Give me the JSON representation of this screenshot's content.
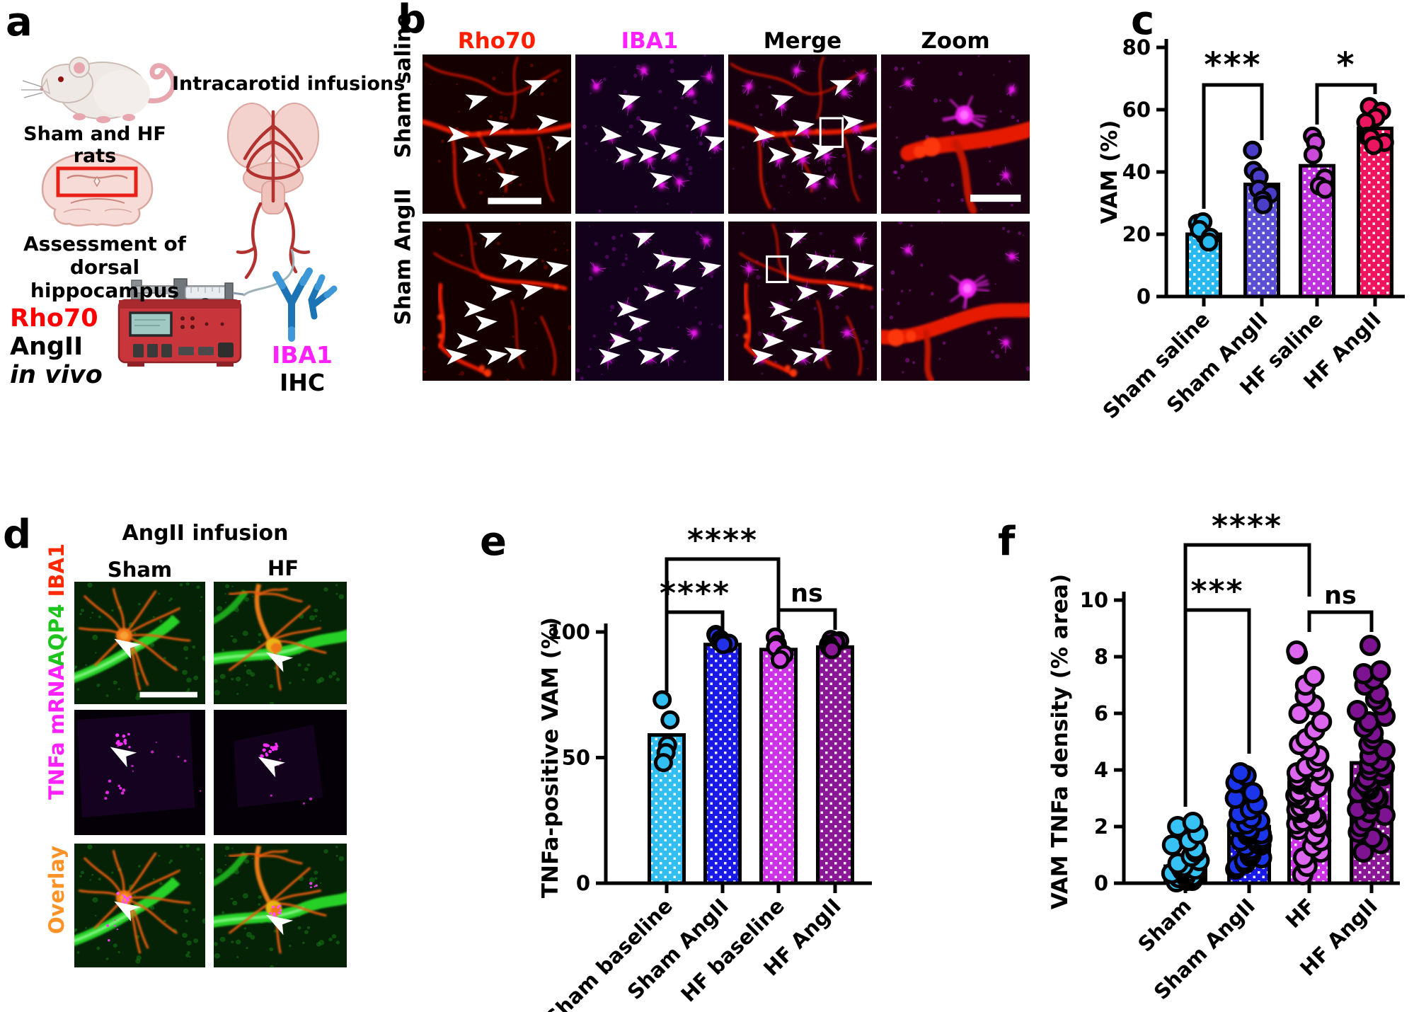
{
  "panels": {
    "a": {
      "label": "a",
      "sham_hf_rats": "Sham and HF rats",
      "intracarotid": "Intracarotid infusions",
      "assessment_1": "Assessment of",
      "assessment_2": "dorsal hippocampus",
      "rho70": "Rho70",
      "angii": "AngII",
      "in_vivo": "in vivo",
      "iba1": "IBA1",
      "ihc": "IHC",
      "colors": {
        "rho70": "#FF0000",
        "iba1": "#FF22FF",
        "antibody": "#1C74B4"
      }
    },
    "b": {
      "label": "b",
      "columns": [
        {
          "label": "Rho70",
          "color": "#FF1E00"
        },
        {
          "label": "IBA1",
          "color": "#FF22FF"
        },
        {
          "label": "Merge",
          "color": "#000000"
        },
        {
          "label": "Zoom",
          "color": "#000000"
        }
      ],
      "rows": [
        "Sham saline",
        "Sham AngII"
      ]
    },
    "c": {
      "label": "c"
    },
    "d": {
      "label": "d",
      "title": "AngII infusion",
      "columns": [
        "Sham",
        "HF"
      ],
      "row1": {
        "aqp4": "AQP4",
        "iba1": "IBA1",
        "aqp4_color": "#1FC41F",
        "iba1_color": "#FF2800"
      },
      "row2": {
        "label": "TNFa mRNA",
        "color": "#FF22FF"
      },
      "row3": {
        "label": "Overlay",
        "color": "#FF9328"
      }
    },
    "e": {
      "label": "e"
    },
    "f": {
      "label": "f"
    }
  },
  "chart_data": [
    {
      "panel": "c",
      "type": "bar",
      "title": "",
      "xlabel": "",
      "ylabel": "VAM (%)",
      "ylim": [
        0,
        80
      ],
      "yticks": [
        0,
        20,
        40,
        60,
        80
      ],
      "grid": false,
      "legend": null,
      "x_tick_rotation": -45,
      "categories": [
        "Sham saline",
        "Sham AngII",
        "HF saline",
        "HF AngII"
      ],
      "values": [
        20,
        36,
        42,
        54
      ],
      "bar_colors": [
        "#29B8F0",
        "#5B4FD4",
        "#BD32DC",
        "#F0135E"
      ],
      "point_colors": [
        "#29B8F0",
        "#4A3EC8",
        "#C94AD8",
        "#EC1560"
      ],
      "points": [
        [
          23.5,
          17.5,
          19.5,
          24,
          21.5,
          19,
          17.5
        ],
        [
          47,
          40.5,
          38.5,
          34.5,
          33,
          31,
          29.5
        ],
        [
          51.5,
          49.5,
          45.5,
          38,
          35.5,
          34.5
        ],
        [
          61,
          59.5,
          57.5,
          56,
          51.5,
          51,
          49.5,
          48.5
        ]
      ],
      "significance": [
        {
          "group1": "Sham saline",
          "group2": "Sham AngII",
          "label": "***"
        },
        {
          "group1": "HF saline",
          "group2": "HF AngII",
          "label": "*"
        }
      ]
    },
    {
      "panel": "e",
      "type": "bar",
      "title": "",
      "xlabel": "",
      "ylabel": "TNFa-positive VAM (%)",
      "ylim": [
        0,
        100
      ],
      "yticks": [
        0,
        50,
        100
      ],
      "grid": false,
      "legend": null,
      "x_tick_rotation": -45,
      "categories": [
        "Sham baseline",
        "Sham AngII",
        "HF baseline",
        "HF AngII"
      ],
      "values": [
        59,
        95,
        93,
        94
      ],
      "bar_colors": [
        "#33BEF2",
        "#1A1AE8",
        "#CC33E6",
        "#8A1896"
      ],
      "point_colors": [
        "#33BEF2",
        "#2230E8",
        "#D84AE8",
        "#8A1896"
      ],
      "points": [
        [
          73,
          65,
          55,
          52,
          48
        ],
        [
          99,
          98.5,
          97,
          96,
          95.5,
          95
        ],
        [
          98,
          95,
          94,
          91,
          89
        ],
        [
          97,
          96.5,
          96,
          95,
          94,
          93
        ]
      ],
      "significance": [
        {
          "group1": "Sham baseline",
          "group2": "Sham AngII",
          "label": "****"
        },
        {
          "group1": "Sham baseline",
          "group2": "HF baseline",
          "label": "****"
        },
        {
          "group1": "HF baseline",
          "group2": "HF AngII",
          "label": "ns"
        }
      ]
    },
    {
      "panel": "f",
      "type": "bar-scatter",
      "title": "",
      "xlabel": "",
      "ylabel": "VAM TNFa density (% area)",
      "ylim": [
        0,
        10
      ],
      "yticks": [
        0,
        2,
        4,
        6,
        8,
        10
      ],
      "grid": false,
      "legend": null,
      "x_tick_rotation": -45,
      "categories": [
        "Sham",
        "Sham AngII",
        "HF",
        "HF AngII"
      ],
      "values": [
        0.6,
        2.0,
        3.55,
        4.25
      ],
      "bar_colors": [
        "#33BEF2",
        "#1A1AE8",
        "#CC33E6",
        "#8A1896"
      ],
      "point_colors": [
        "#36C2F5",
        "#1B35EA",
        "#DD66EE",
        "#7D1390"
      ],
      "points": [
        [
          0.05,
          0.1,
          0.1,
          0.15,
          0.2,
          0.2,
          0.25,
          0.25,
          0.3,
          0.3,
          0.35,
          0.4,
          0.4,
          0.45,
          0.5,
          0.55,
          0.6,
          0.7,
          0.8,
          0.95,
          1.1,
          1.2,
          1.35,
          1.5,
          1.75,
          2.0,
          2.15
        ],
        [
          0.5,
          0.6,
          0.7,
          0.8,
          0.9,
          0.95,
          1.0,
          1.1,
          1.15,
          1.2,
          1.3,
          1.35,
          1.4,
          1.5,
          1.5,
          1.6,
          1.6,
          1.7,
          1.75,
          1.8,
          1.9,
          1.9,
          2.0,
          2.05,
          2.1,
          2.2,
          2.3,
          2.45,
          2.6,
          2.8,
          3.0,
          3.2,
          3.55,
          3.8,
          3.9
        ],
        [
          0.3,
          0.6,
          0.9,
          1.1,
          1.3,
          1.5,
          1.7,
          1.9,
          2.0,
          2.1,
          2.2,
          2.3,
          2.4,
          2.5,
          2.6,
          2.7,
          2.8,
          2.9,
          3.0,
          3.1,
          3.2,
          3.3,
          3.4,
          3.5,
          3.6,
          3.7,
          3.8,
          3.9,
          4.0,
          4.1,
          4.3,
          4.5,
          4.7,
          4.9,
          5.1,
          5.4,
          5.7,
          6.0,
          6.3,
          6.6,
          7.0,
          7.3,
          8.1,
          8.2
        ],
        [
          1.1,
          1.4,
          1.6,
          1.8,
          2.0,
          2.2,
          2.4,
          2.5,
          2.6,
          2.8,
          2.9,
          3.0,
          3.1,
          3.2,
          3.3,
          3.4,
          3.5,
          3.6,
          3.7,
          3.8,
          3.9,
          4.0,
          4.1,
          4.2,
          4.3,
          4.5,
          4.7,
          4.9,
          5.1,
          5.3,
          5.5,
          5.7,
          5.9,
          6.1,
          6.3,
          6.5,
          6.7,
          7.0,
          7.2,
          7.4,
          7.5,
          8.4
        ]
      ],
      "significance": [
        {
          "group1": "Sham",
          "group2": "Sham AngII",
          "label": "***"
        },
        {
          "group1": "Sham",
          "group2": "HF",
          "label": "****"
        },
        {
          "group1": "HF",
          "group2": "HF AngII",
          "label": "ns"
        }
      ]
    }
  ]
}
